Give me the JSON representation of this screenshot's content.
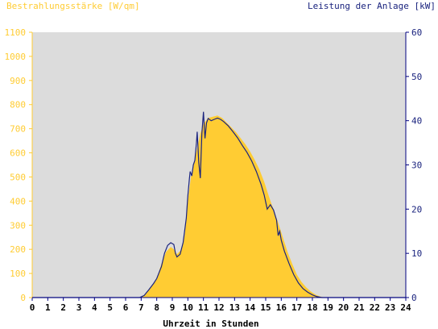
{
  "chart_data": {
    "type": "area",
    "left_axis_title": "Bestrahlungsstärke [W/qm]",
    "right_axis_title": "Leistung der Anlage [kW]",
    "xlabel": "Uhrzeit in Stunden",
    "xlim": [
      0,
      24
    ],
    "y_left_lim": [
      0,
      1100
    ],
    "y_right_lim": [
      0,
      60
    ],
    "x_ticks": [
      "0",
      "1",
      "2",
      "3",
      "4",
      "5",
      "6",
      "7",
      "8",
      "9",
      "10",
      "11",
      "12",
      "13",
      "14",
      "15",
      "16",
      "17",
      "18",
      "19",
      "20",
      "21",
      "22",
      "23",
      "24"
    ],
    "y_left_ticks": [
      "0",
      "100",
      "200",
      "300",
      "400",
      "500",
      "600",
      "700",
      "800",
      "900",
      "1000",
      "1100"
    ],
    "y_right_ticks": [
      "0",
      "10",
      "20",
      "30",
      "40",
      "50",
      "60"
    ],
    "grid": false,
    "colors": {
      "plot_background": "#dcdcdc",
      "irradiance_fill": "#ffcc33",
      "power_line": "#1a237e",
      "left_axis_text": "#ffcc33",
      "right_axis_text": "#1a237e",
      "axis_line": "#000080"
    },
    "series": [
      {
        "name": "Bestrahlungsstärke [W/qm]",
        "axis": "left",
        "x": [
          0,
          6.9,
          7.2,
          7.5,
          7.8,
          8.0,
          8.3,
          8.6,
          8.9,
          9.1,
          9.3,
          9.6,
          9.8,
          10.0,
          10.2,
          10.4,
          10.6,
          10.8,
          11.0,
          11.3,
          11.6,
          11.9,
          12.2,
          12.5,
          12.8,
          13.1,
          13.4,
          13.7,
          14.0,
          14.3,
          14.6,
          14.9,
          15.2,
          15.5,
          15.8,
          16.1,
          16.4,
          16.7,
          17.0,
          17.3,
          17.6,
          17.9,
          18.2,
          18.5,
          18.8,
          19.0,
          24
        ],
        "values": [
          0,
          0,
          10,
          35,
          60,
          80,
          140,
          190,
          210,
          200,
          180,
          200,
          260,
          400,
          500,
          560,
          620,
          680,
          720,
          745,
          750,
          755,
          745,
          725,
          705,
          685,
          660,
          635,
          605,
          570,
          530,
          480,
          420,
          365,
          310,
          250,
          190,
          140,
          95,
          65,
          42,
          25,
          12,
          4,
          0,
          0,
          0
        ]
      },
      {
        "name": "Leistung der Anlage [kW]",
        "axis": "right",
        "x": [
          0,
          6.9,
          7.2,
          7.5,
          7.8,
          8.0,
          8.3,
          8.5,
          8.7,
          8.9,
          9.1,
          9.2,
          9.3,
          9.5,
          9.7,
          9.9,
          10.0,
          10.1,
          10.15,
          10.25,
          10.35,
          10.45,
          10.55,
          10.6,
          10.7,
          10.8,
          10.9,
          11.0,
          11.05,
          11.1,
          11.2,
          11.3,
          11.5,
          11.7,
          11.9,
          12.1,
          12.3,
          12.6,
          12.9,
          13.2,
          13.5,
          13.8,
          14.1,
          14.4,
          14.7,
          14.9,
          15.1,
          15.3,
          15.5,
          15.7,
          15.8,
          15.9,
          16.0,
          16.2,
          16.5,
          16.8,
          17.1,
          17.4,
          17.7,
          18.0,
          18.3,
          18.6,
          18.8,
          19.0,
          24
        ],
        "values": [
          0,
          0,
          0.5,
          1.8,
          3.2,
          4.3,
          7.0,
          10.0,
          11.8,
          12.4,
          12.0,
          10.0,
          9.2,
          9.8,
          12.5,
          18.0,
          23.0,
          27.0,
          28.5,
          27.5,
          30.0,
          31.0,
          35.0,
          37.5,
          30.5,
          27.0,
          37.0,
          42.0,
          39.0,
          36.0,
          39.5,
          40.5,
          40.0,
          40.3,
          40.6,
          40.3,
          39.8,
          38.8,
          37.5,
          36.1,
          34.4,
          32.8,
          30.9,
          28.5,
          25.6,
          23.2,
          20.0,
          21.0,
          19.8,
          17.5,
          14.0,
          15.0,
          13.0,
          10.5,
          7.7,
          5.2,
          3.3,
          2.0,
          1.2,
          0.6,
          0.2,
          0,
          0,
          0,
          0
        ]
      }
    ]
  }
}
